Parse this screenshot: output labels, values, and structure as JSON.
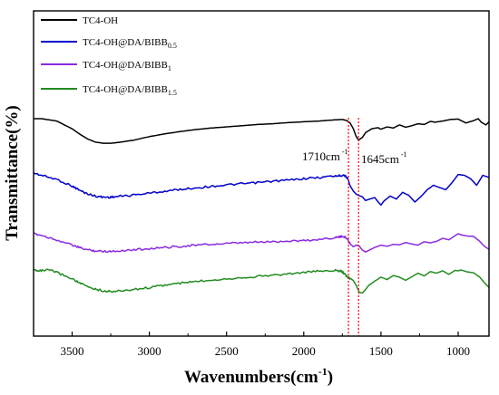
{
  "chart_data": {
    "type": "line",
    "title": "",
    "xlabel": "Wavenumbers(cm",
    "xlabel_sup": "-1",
    "xlabel_suffix": ")",
    "ylabel": "Transmittance(%)",
    "xlim": [
      3750,
      800
    ],
    "x_reversed": true,
    "x_ticks": [
      3500,
      3000,
      2500,
      2000,
      1500,
      1000
    ],
    "y_ticks_shown": false,
    "grid": false,
    "legend_position": "top-left",
    "series": [
      {
        "name_main": "TC4-OH",
        "name_sub": "",
        "color": "#000000",
        "x": [
          3750,
          3700,
          3600,
          3500,
          3450,
          3400,
          3350,
          3300,
          3250,
          3200,
          3100,
          3000,
          2900,
          2800,
          2700,
          2600,
          2500,
          2400,
          2300,
          2200,
          2100,
          2000,
          1900,
          1800,
          1750,
          1720,
          1700,
          1680,
          1660,
          1645,
          1620,
          1600,
          1560,
          1520,
          1500,
          1460,
          1420,
          1380,
          1340,
          1300,
          1260,
          1220,
          1180,
          1150,
          1100,
          1050,
          1000,
          980,
          950,
          900,
          870,
          850,
          820,
          800
        ],
        "y": [
          0.0,
          0.0,
          0.6,
          2.6,
          4.0,
          5.2,
          6.0,
          6.3,
          6.3,
          6.1,
          5.5,
          4.6,
          3.9,
          3.3,
          2.8,
          2.4,
          2.1,
          1.8,
          1.5,
          1.3,
          1.0,
          0.8,
          0.6,
          0.3,
          0.2,
          0.5,
          1.1,
          2.5,
          4.6,
          5.5,
          4.8,
          3.6,
          2.6,
          2.3,
          2.7,
          2.1,
          2.4,
          1.6,
          2.2,
          1.8,
          1.3,
          1.5,
          0.7,
          0.9,
          0.6,
          0.2,
          0.1,
          0.5,
          1.1,
          0.5,
          0.0,
          0.9,
          1.6,
          0.8
        ]
      },
      {
        "name_main": "TC4-OH@DA/BIBB",
        "name_sub": "0.5",
        "color": "#0000cd",
        "x": [
          3750,
          3700,
          3600,
          3500,
          3450,
          3400,
          3350,
          3300,
          3250,
          3200,
          3100,
          3000,
          2900,
          2800,
          2700,
          2600,
          2500,
          2400,
          2300,
          2200,
          2100,
          2000,
          1900,
          1800,
          1760,
          1740,
          1720,
          1700,
          1680,
          1660,
          1640,
          1620,
          1600,
          1580,
          1540,
          1520,
          1500,
          1480,
          1440,
          1400,
          1360,
          1320,
          1280,
          1240,
          1200,
          1160,
          1120,
          1080,
          1040,
          1000,
          960,
          920,
          880,
          840,
          800
        ],
        "y": [
          0.0,
          0.6,
          1.7,
          3.5,
          4.7,
          5.6,
          6.2,
          6.5,
          6.5,
          6.3,
          5.9,
          5.4,
          4.9,
          4.4,
          4.0,
          3.6,
          3.2,
          2.9,
          2.6,
          2.2,
          1.9,
          1.5,
          1.2,
          0.8,
          0.7,
          0.5,
          1.2,
          3.4,
          4.8,
          5.7,
          6.1,
          6.4,
          7.4,
          7.1,
          6.6,
          7.7,
          8.6,
          7.5,
          6.2,
          7.0,
          5.2,
          6.0,
          7.8,
          6.3,
          4.5,
          3.3,
          3.9,
          4.5,
          2.6,
          0.4,
          0.6,
          1.5,
          3.3,
          0.6,
          1.2
        ]
      },
      {
        "name_main": "TC4-OH@DA/BIBB",
        "name_sub": "1",
        "color": "#8a2be2",
        "x": [
          3750,
          3700,
          3600,
          3500,
          3450,
          3400,
          3350,
          3300,
          3250,
          3200,
          3100,
          3000,
          2900,
          2800,
          2700,
          2600,
          2500,
          2400,
          2300,
          2200,
          2100,
          2000,
          1900,
          1800,
          1760,
          1740,
          1720,
          1700,
          1680,
          1660,
          1640,
          1620,
          1600,
          1580,
          1540,
          1500,
          1460,
          1420,
          1380,
          1340,
          1300,
          1260,
          1220,
          1180,
          1140,
          1100,
          1060,
          1020,
          1000,
          980,
          940,
          900,
          860,
          830,
          800
        ],
        "y": [
          0.0,
          0.4,
          1.6,
          3.0,
          3.7,
          4.2,
          4.5,
          4.6,
          4.6,
          4.5,
          4.2,
          3.9,
          3.6,
          3.3,
          3.0,
          2.8,
          2.6,
          2.4,
          2.2,
          2.1,
          1.9,
          1.8,
          1.5,
          1.0,
          0.8,
          0.7,
          1.3,
          2.6,
          3.4,
          3.0,
          3.3,
          4.3,
          4.8,
          4.4,
          3.6,
          3.0,
          3.3,
          2.8,
          2.9,
          2.3,
          2.7,
          3.0,
          2.1,
          2.4,
          2.0,
          1.2,
          1.6,
          0.5,
          0.0,
          0.3,
          0.6,
          0.7,
          2.0,
          3.3,
          4.1
        ]
      },
      {
        "name_main": "TC4-OH@DA/BIBB",
        "name_sub": "1.5",
        "color": "#228b22",
        "x": [
          3750,
          3700,
          3650,
          3600,
          3500,
          3450,
          3400,
          3350,
          3300,
          3250,
          3200,
          3100,
          3000,
          2900,
          2800,
          2700,
          2600,
          2500,
          2400,
          2300,
          2200,
          2100,
          2000,
          1900,
          1800,
          1760,
          1740,
          1720,
          1700,
          1680,
          1660,
          1640,
          1620,
          1600,
          1580,
          1540,
          1500,
          1460,
          1420,
          1380,
          1340,
          1300,
          1260,
          1220,
          1180,
          1140,
          1100,
          1060,
          1020,
          1000,
          980,
          940,
          900,
          860,
          830,
          800
        ],
        "y": [
          0.0,
          0.2,
          0.0,
          0.6,
          2.2,
          3.3,
          4.2,
          4.8,
          5.2,
          5.4,
          5.3,
          4.9,
          4.4,
          3.8,
          3.3,
          2.9,
          2.5,
          2.2,
          1.9,
          1.6,
          1.3,
          1.0,
          0.6,
          0.3,
          0.1,
          0.3,
          0.8,
          1.7,
          2.1,
          2.6,
          3.9,
          5.6,
          5.8,
          4.9,
          3.9,
          2.8,
          1.8,
          2.4,
          1.4,
          1.8,
          2.6,
          1.7,
          0.8,
          1.5,
          0.4,
          0.8,
          0.2,
          1.1,
          0.1,
          0.2,
          0.0,
          0.5,
          0.7,
          1.8,
          3.2,
          4.4
        ]
      }
    ],
    "annotations": [
      {
        "text": "1710cm",
        "sup": "-1",
        "x": 1710,
        "line_color": "#ff0000",
        "line_style": "dotted"
      },
      {
        "text": "1645cm",
        "sup": "-1",
        "x": 1645,
        "line_color": "#ff0000",
        "line_style": "dotted"
      }
    ]
  }
}
